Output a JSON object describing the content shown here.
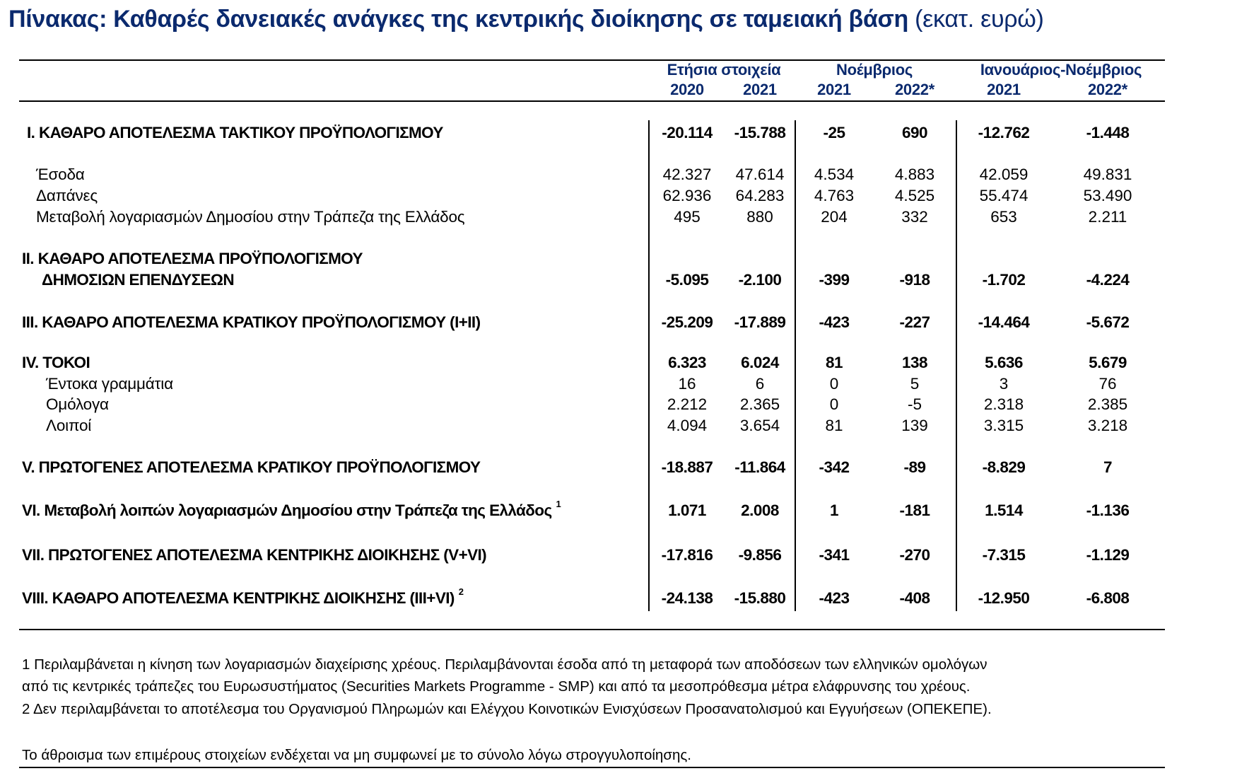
{
  "title": {
    "main": "Πίνακας: Καθαρές δανειακές ανάγκες της κεντρικής διοίκησης σε ταμειακή βάση",
    "unit": "(εκατ. ευρώ)"
  },
  "header": {
    "groups": [
      "Ετήσια στοιχεία",
      "Νοέμβριος",
      "Ιανουάριος-Νοέμβριος"
    ],
    "years": [
      "2020",
      "2021",
      "2021",
      "2022*",
      "2021",
      "2022*"
    ]
  },
  "rows": [
    {
      "label": "I. ΚΑΘΑΡΟ ΑΠΟΤΕΛΕΣΜΑ  ΤΑΚΤΙΚΟΥ ΠΡΟΫΠΟΛΟΓΙΣΜΟΥ",
      "bold": true,
      "values": [
        "-20.114",
        "-15.788",
        "-25",
        "690",
        "-12.762",
        "-1.448"
      ]
    },
    {
      "label": "Έσοδα",
      "bold": false,
      "values": [
        "42.327",
        "47.614",
        "4.534",
        "4.883",
        "42.059",
        "49.831"
      ]
    },
    {
      "label": "Δαπάνες",
      "bold": false,
      "values": [
        "62.936",
        "64.283",
        "4.763",
        "4.525",
        "55.474",
        "53.490"
      ]
    },
    {
      "label": "Μεταβολή λογαριασμών Δημοσίου στην Τράπεζα της Ελλάδος",
      "bold": false,
      "values": [
        "495",
        "880",
        "204",
        "332",
        "653",
        "2.211"
      ]
    },
    {
      "label": "II. ΚΑΘΑΡΟ ΑΠΟΤΕΛΕΣΜΑ ΠΡΟΫΠΟΛΟΓΙΣΜΟΥ",
      "label2": "ΔΗΜΟΣΙΩΝ ΕΠΕΝΔΥΣΕΩΝ",
      "bold": true,
      "values": [
        "-5.095",
        "-2.100",
        "-399",
        "-918",
        "-1.702",
        "-4.224"
      ]
    },
    {
      "label": "III. ΚΑΘΑΡΟ ΑΠΟΤΕΛΕΣΜΑ ΚΡΑΤΙΚΟΥ ΠΡΟΫΠΟΛΟΓΙΣΜΟΥ (I+II)",
      "bold": true,
      "values": [
        "-25.209",
        "-17.889",
        "-423",
        "-227",
        "-14.464",
        "-5.672"
      ]
    },
    {
      "label": "IV. ΤΟΚΟΙ",
      "bold": true,
      "values": [
        "6.323",
        "6.024",
        "81",
        "138",
        "5.636",
        "5.679"
      ]
    },
    {
      "label": "Έντοκα γραμμάτια",
      "bold": false,
      "values": [
        "16",
        "6",
        "0",
        "5",
        "3",
        "76"
      ]
    },
    {
      "label": "Ομόλογα",
      "bold": false,
      "values": [
        "2.212",
        "2.365",
        "0",
        "-5",
        "2.318",
        "2.385"
      ]
    },
    {
      "label": "Λοιποί",
      "bold": false,
      "values": [
        "4.094",
        "3.654",
        "81",
        "139",
        "3.315",
        "3.218"
      ]
    },
    {
      "label": "V. ΠΡΩΤΟΓΕΝΕΣ ΑΠΟΤΕΛΕΣΜΑ  ΚΡΑΤΙΚΟΥ ΠΡΟΫΠΟΛΟΓΙΣΜΟΥ",
      "bold": true,
      "values": [
        "-18.887",
        "-11.864",
        "-342",
        "-89",
        "-8.829",
        "7"
      ]
    },
    {
      "label": "VI. Μεταβολή λοιπών λογαριασμών Δημοσίου στην Τράπεζα της Ελλάδος",
      "note": "1",
      "bold": true,
      "values": [
        "1.071",
        "2.008",
        "1",
        "-181",
        "1.514",
        "-1.136"
      ]
    },
    {
      "label": "VII. ΠΡΩΤΟΓΕΝΕΣ ΑΠΟΤΕΛΕΣΜΑ ΚΕΝΤΡΙΚΗΣ ΔΙΟΙΚΗΣΗΣ (V+VI)",
      "bold": true,
      "values": [
        "-17.816",
        "-9.856",
        "-341",
        "-270",
        "-7.315",
        "-1.129"
      ]
    },
    {
      "label": "VIII. ΚΑΘΑΡΟ ΑΠΟΤΕΛΕΣΜΑ ΚΕΝΤΡΙΚΗΣ ΔΙΟΙΚΗΣΗΣ (III+VI)",
      "note": "2",
      "bold": true,
      "values": [
        "-24.138",
        "-15.880",
        "-423",
        "-408",
        "-12.950",
        "-6.808"
      ]
    }
  ],
  "footnotes": [
    "1 Περιλαμβάνεται η κίνηση των λογαριασμών διαχείρισης χρέους. Περιλαμβάνονται έσοδα από τη μεταφορά των αποδόσεων των ελληνικών ομολόγων",
    "από τις κεντρικές τράπεζες του Ευρωσυστήματος (Securities Markets Programme - SMP) και από τα μεσοπρόθεσμα μέτρα ελάφρυνσης του χρέους.",
    "2 Δεν περιλαμβάνεται το αποτέλεσμα του Οργανισμού Πληρωμών και Ελέγχου Κοινοτικών Ενισχύσεων Προσανατολισμού και Εγγυήσεων (ΟΠΕΚΕΠΕ).",
    "Το άθροισμα των επιμέρους στοιχείων ενδέχεται να μη συμφωνεί με το σύνολο λόγω στρογγυλοποίησης."
  ],
  "colors": {
    "title": "#0b2a6e",
    "header": "#0b2a6e"
  }
}
